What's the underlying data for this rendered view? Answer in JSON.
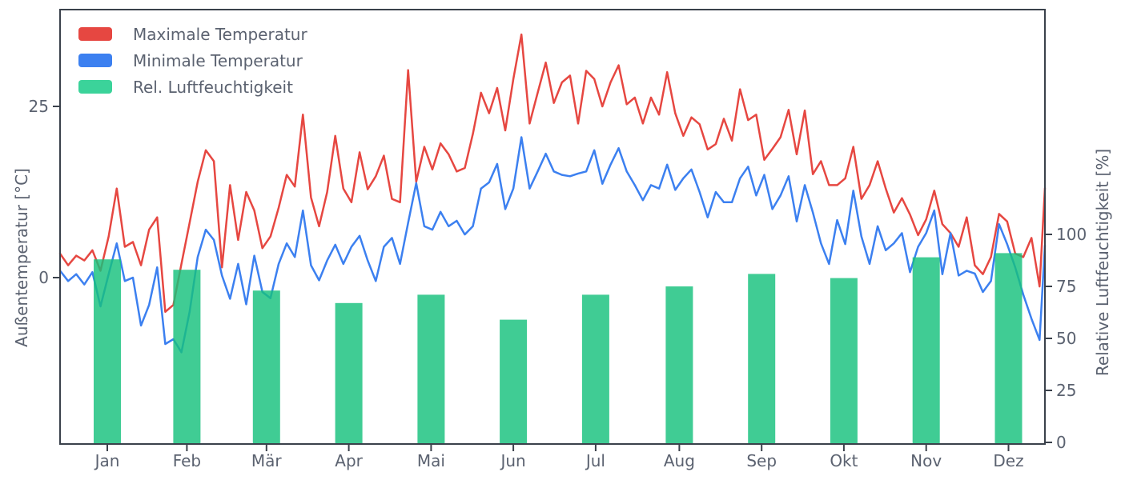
{
  "colors": {
    "max_temp": "#e64741",
    "min_temp": "#3c80f0",
    "humidity_bar": "#16c17d",
    "humidity_swatch": "#3bd39a",
    "spine": "#3a414b",
    "tick_text": "#5b6270",
    "background": "#ffffff"
  },
  "legend": {
    "items": [
      {
        "label": "Maximale Temperatur",
        "color": "#e64741"
      },
      {
        "label": "Minimale Temperatur",
        "color": "#3c80f0"
      },
      {
        "label": "Rel. Luftfeuchtigkeit",
        "color": "#3bd39a"
      }
    ]
  },
  "chart_data": {
    "type": "line+bar",
    "title": "",
    "x_axis": {
      "unit": "day of year",
      "range": [
        0,
        365
      ],
      "tick_labels": [
        "Jan",
        "Feb",
        "Mär",
        "Apr",
        "Mai",
        "Jun",
        "Jul",
        "Aug",
        "Sep",
        "Okt",
        "Nov",
        "Dez"
      ],
      "tick_days": [
        17.5,
        47,
        76.5,
        107,
        137.5,
        168,
        198.5,
        229.5,
        260,
        290.5,
        321,
        351.5
      ]
    },
    "y_left": {
      "label": "Außentemperatur [°C]",
      "range": [
        -24.3,
        39.1
      ],
      "ticks": [
        0,
        25
      ],
      "tick_labels": [
        "0",
        "25"
      ]
    },
    "y_right": {
      "label": "Relative Luftfeuchtigkeit [%]",
      "range": [
        0,
        208
      ],
      "ticks": [
        0,
        25,
        50,
        75,
        100
      ],
      "tick_labels": [
        "0",
        "25",
        "50",
        "75",
        "100"
      ]
    },
    "series": [
      {
        "name": "Maximale Temperatur",
        "type": "line",
        "color": "#e64741",
        "sample_step_days": 3,
        "values": [
          3.5,
          1.8,
          3.2,
          2.5,
          4.0,
          1.0,
          6.0,
          13.0,
          4.5,
          5.2,
          1.8,
          7.0,
          8.8,
          -5.0,
          -4.0,
          2.0,
          8.0,
          14.0,
          18.6,
          17.0,
          1.5,
          13.5,
          5.5,
          12.5,
          9.8,
          4.3,
          6.0,
          10.2,
          15.0,
          13.3,
          23.8,
          11.7,
          7.5,
          12.5,
          20.7,
          13.0,
          11.0,
          18.3,
          12.9,
          14.8,
          17.8,
          11.5,
          11.0,
          30.3,
          14.0,
          19.1,
          15.8,
          19.6,
          18.0,
          15.5,
          16.0,
          21.0,
          27.0,
          24.0,
          27.7,
          21.5,
          29.0,
          35.5,
          22.5,
          27.0,
          31.4,
          25.5,
          28.5,
          29.5,
          22.5,
          30.2,
          29.0,
          25.0,
          28.5,
          31.0,
          25.3,
          26.3,
          22.5,
          26.3,
          23.8,
          30.0,
          24.0,
          20.7,
          23.4,
          22.4,
          18.7,
          19.5,
          23.2,
          20.0,
          27.5,
          23.0,
          23.8,
          17.2,
          18.8,
          20.5,
          24.5,
          18.0,
          24.4,
          15.1,
          17.0,
          13.5,
          13.5,
          14.5,
          19.1,
          11.5,
          13.5,
          17.0,
          13.0,
          9.5,
          11.6,
          9.2,
          6.2,
          8.5,
          12.7,
          7.8,
          6.5,
          4.5,
          8.8,
          1.8,
          0.5,
          3.0,
          9.3,
          8.2,
          3.5,
          3.0,
          5.8,
          -1.3,
          13.1
        ]
      },
      {
        "name": "Minimale Temperatur",
        "type": "line",
        "color": "#3c80f0",
        "sample_step_days": 3,
        "values": [
          1.0,
          -0.5,
          0.5,
          -1.0,
          0.8,
          -4.2,
          0.5,
          5.0,
          -0.5,
          0.0,
          -7.0,
          -4.0,
          1.5,
          -9.7,
          -9.0,
          -10.9,
          -5.0,
          3.0,
          7.0,
          5.5,
          0.3,
          -3.1,
          2.0,
          -3.9,
          3.2,
          -2.1,
          -3.0,
          2.0,
          5.0,
          3.0,
          9.8,
          1.8,
          -0.4,
          2.5,
          4.8,
          2.0,
          4.5,
          6.1,
          2.5,
          -0.5,
          4.5,
          5.8,
          2.0,
          8.0,
          13.8,
          7.5,
          7.0,
          9.6,
          7.5,
          8.3,
          6.3,
          7.5,
          13.0,
          13.9,
          16.6,
          10.0,
          13.0,
          20.5,
          13.0,
          15.5,
          18.1,
          15.5,
          15.0,
          14.8,
          15.2,
          15.5,
          18.6,
          13.7,
          16.5,
          18.9,
          15.5,
          13.5,
          11.3,
          13.5,
          13.0,
          16.5,
          12.8,
          14.5,
          15.8,
          12.5,
          8.8,
          12.5,
          11.0,
          11.0,
          14.5,
          16.2,
          12.0,
          15.0,
          10.0,
          12.0,
          14.8,
          8.2,
          13.5,
          9.5,
          5.0,
          2.0,
          8.4,
          4.9,
          12.7,
          6.0,
          2.0,
          7.5,
          4.0,
          5.0,
          6.5,
          0.8,
          4.5,
          6.5,
          9.8,
          0.5,
          6.5,
          0.3,
          1.0,
          0.6,
          -2.1,
          -0.5,
          7.8,
          4.9,
          1.5,
          -2.5,
          -6.0,
          -9.1,
          4.7
        ]
      },
      {
        "name": "Rel. Luftfeuchtigkeit",
        "type": "bar",
        "color": "#16c17d",
        "opacity": 0.82,
        "categories": [
          "Jan",
          "Feb",
          "Mär",
          "Apr",
          "Mai",
          "Jun",
          "Jul",
          "Aug",
          "Sep",
          "Okt",
          "Nov",
          "Dez"
        ],
        "values": [
          88,
          83,
          73,
          67,
          71,
          59,
          71,
          75,
          81,
          79,
          89,
          91
        ]
      }
    ]
  }
}
